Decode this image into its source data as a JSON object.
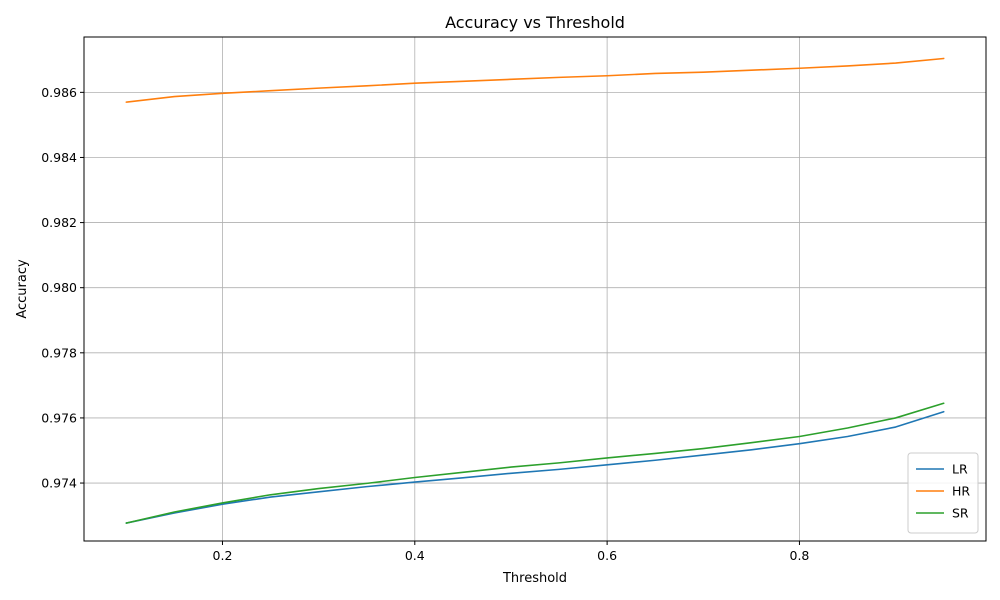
{
  "chart_data": {
    "type": "line",
    "title": "Accuracy vs Threshold",
    "xlabel": "Threshold",
    "ylabel": "Accuracy",
    "x": [
      0.1,
      0.15,
      0.2,
      0.25,
      0.3,
      0.35,
      0.4,
      0.45,
      0.5,
      0.55,
      0.6,
      0.65,
      0.7,
      0.75,
      0.8,
      0.85,
      0.9,
      0.95
    ],
    "xlim": [
      0.056,
      0.994
    ],
    "ylim": [
      0.97222,
      0.9877
    ],
    "xticks": [
      0.2,
      0.4,
      0.6,
      0.8
    ],
    "xtick_labels": [
      "0.2",
      "0.4",
      "0.6",
      "0.8"
    ],
    "yticks": [
      0.974,
      0.976,
      0.978,
      0.98,
      0.982,
      0.984,
      0.986
    ],
    "ytick_labels": [
      "0.974",
      "0.976",
      "0.978",
      "0.980",
      "0.982",
      "0.984",
      "0.986"
    ],
    "grid": true,
    "legend_position": "lower-right",
    "series": [
      {
        "name": "LR",
        "color": "#1f77b4",
        "values": [
          0.97277,
          0.97308,
          0.97335,
          0.97357,
          0.97373,
          0.97389,
          0.97403,
          0.97416,
          0.9743,
          0.97442,
          0.97456,
          0.9747,
          0.97486,
          0.97502,
          0.97521,
          0.97543,
          0.97572,
          0.97619
        ]
      },
      {
        "name": "HR",
        "color": "#ff7f0e",
        "values": [
          0.9857,
          0.98587,
          0.98597,
          0.98605,
          0.98613,
          0.9862,
          0.98628,
          0.98634,
          0.9864,
          0.98646,
          0.98651,
          0.98658,
          0.98662,
          0.98668,
          0.98674,
          0.98681,
          0.9869,
          0.98704
        ]
      },
      {
        "name": "SR",
        "color": "#2ca02c",
        "values": [
          0.97277,
          0.97311,
          0.97339,
          0.97364,
          0.97383,
          0.97399,
          0.97417,
          0.97433,
          0.97449,
          0.97462,
          0.97477,
          0.97491,
          0.97506,
          0.97524,
          0.97543,
          0.97569,
          0.976,
          0.97645
        ]
      }
    ]
  }
}
